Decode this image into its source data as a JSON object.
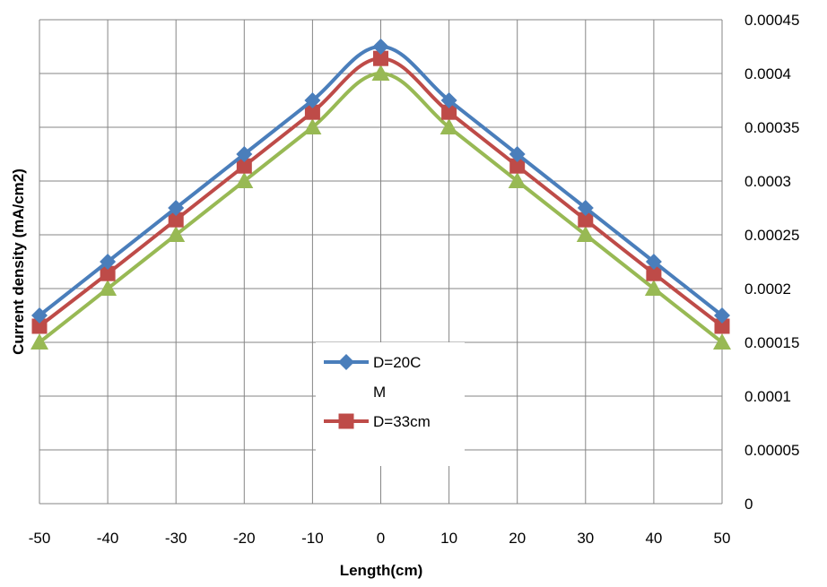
{
  "chart_data": {
    "type": "line",
    "title": "",
    "xlabel": "Length(cm)",
    "ylabel": "Current density (mA/cm2)",
    "x": [
      -50,
      -40,
      -30,
      -20,
      -10,
      0,
      10,
      20,
      30,
      40,
      50
    ],
    "xlim": [
      -50,
      50
    ],
    "ylim": [
      0,
      0.00045
    ],
    "x_ticks": [
      "-50",
      "-40",
      "-30",
      "-20",
      "-10",
      "0",
      "10",
      "20",
      "30",
      "40",
      "50"
    ],
    "y_ticks": [
      "0",
      "0.00005",
      "0.0001",
      "0.00015",
      "0.0002",
      "0.00025",
      "0.0003",
      "0.00035",
      "0.0004",
      "0.00045"
    ],
    "y_axis_side": "right",
    "grid": true,
    "legend_placement": "center",
    "series": [
      {
        "name": "D=20CM",
        "legend_lines": [
          "D=20C",
          "M"
        ],
        "color": "#4A7EBB",
        "marker": "diamond",
        "values": [
          0.000175,
          0.000225,
          0.000275,
          0.000325,
          0.000375,
          0.000425,
          0.000375,
          0.000325,
          0.000275,
          0.000225,
          0.000175
        ]
      },
      {
        "name": "D=33cm",
        "legend_lines": [
          "D=33cm"
        ],
        "color": "#BE4B48",
        "marker": "square",
        "values": [
          0.000165,
          0.000214,
          0.000264,
          0.000314,
          0.000364,
          0.000414,
          0.000364,
          0.000314,
          0.000264,
          0.000214,
          0.000165
        ]
      },
      {
        "color": "#98B954",
        "marker": "triangle",
        "values": [
          0.00015,
          0.0002,
          0.00025,
          0.0003,
          0.00035,
          0.0004,
          0.00035,
          0.0003,
          0.00025,
          0.0002,
          0.00015
        ]
      }
    ]
  }
}
